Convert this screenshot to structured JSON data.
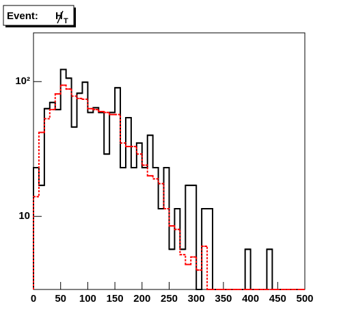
{
  "chart_data": {
    "type": "histogram",
    "title": "Event:",
    "title_symbol": "H",
    "title_subscript": "T",
    "log_y": true,
    "bins": [
      0,
      10,
      20,
      30,
      40,
      50,
      60,
      70,
      80,
      90,
      100,
      110,
      120,
      130,
      140,
      150,
      160,
      170,
      180,
      190,
      200,
      210,
      220,
      230,
      240,
      250,
      260,
      270,
      280,
      290,
      300,
      310,
      320,
      330,
      340,
      350,
      360,
      370,
      380,
      390,
      400,
      410,
      420,
      430,
      440,
      450,
      460,
      470,
      480,
      490,
      500
    ],
    "series": [
      {
        "color": "#000000",
        "style": "solid",
        "values": [
          23,
          17,
          63,
          70,
          62,
          123,
          106,
          46,
          82,
          99,
          59,
          64,
          59,
          29,
          59,
          90,
          23,
          54,
          23,
          35,
          23,
          40,
          23,
          11.4,
          23,
          5.7,
          11.4,
          5.7,
          17,
          17,
          0,
          11.4,
          11.4,
          0,
          0,
          0,
          0,
          0,
          0,
          5.7,
          0,
          0,
          0,
          5.7,
          0,
          0,
          0,
          0,
          0,
          0
        ]
      },
      {
        "color": "#ff0000",
        "style": "dotted",
        "values": [
          14,
          42,
          53,
          62,
          81,
          94,
          88,
          78,
          75,
          74,
          63,
          62,
          60,
          59,
          57,
          57,
          35,
          33,
          33,
          29,
          24,
          20,
          19,
          17.5,
          11.4,
          8.5,
          8,
          5.2,
          4.4,
          5,
          4,
          6,
          0,
          0,
          0,
          0,
          0,
          0,
          0,
          0,
          0,
          0,
          0,
          0,
          0,
          0,
          0,
          0,
          0,
          0
        ]
      }
    ],
    "xlim": [
      0,
      500
    ],
    "xticks": [
      0,
      50,
      100,
      150,
      200,
      250,
      300,
      350,
      400,
      450,
      500
    ],
    "ylim": [
      2.87,
      230
    ],
    "yticks": [
      10,
      {
        "value": 100,
        "label": "10²"
      }
    ]
  }
}
